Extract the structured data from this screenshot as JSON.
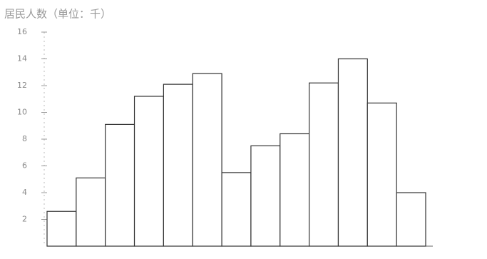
{
  "chart_data": {
    "type": "bar",
    "title": "居民人数（单位：千）",
    "categories": [
      null,
      null,
      null,
      null,
      null,
      null,
      null,
      null,
      null,
      null,
      null,
      null,
      null
    ],
    "values": [
      2.6,
      5.1,
      9.1,
      11.2,
      12.1,
      12.9,
      5.5,
      7.5,
      8.4,
      12.2,
      14.0,
      10.7,
      4.0
    ],
    "color": "#ffffff",
    "ylim": [
      0,
      16
    ],
    "yticks": [
      2,
      4,
      6,
      8,
      10,
      12,
      14,
      16
    ],
    "grid": false
  }
}
